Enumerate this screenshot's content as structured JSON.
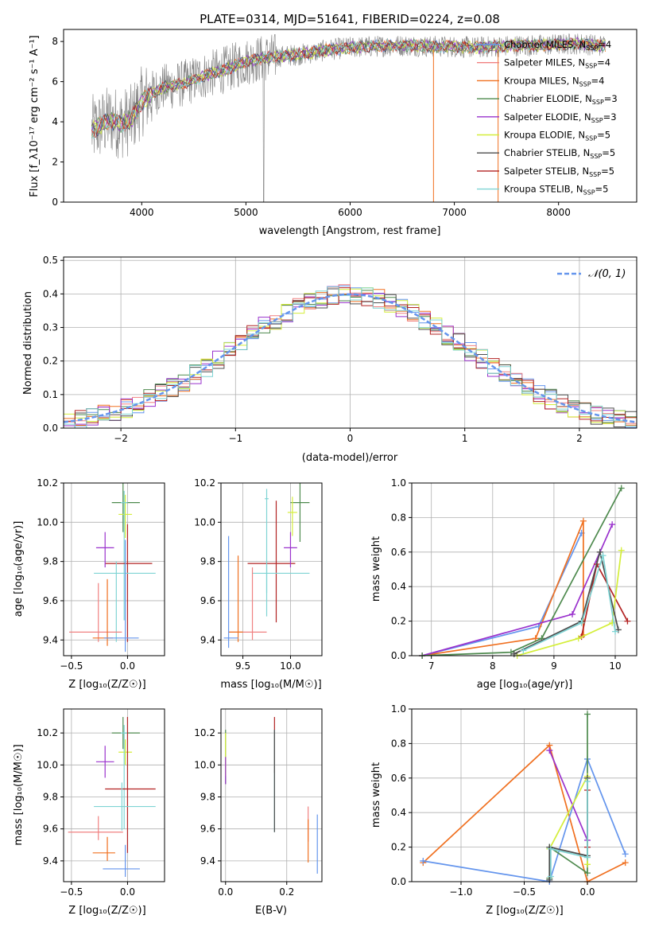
{
  "figure": {
    "title": "PLATE=0314, MJD=51641, FIBERID=0224, z=0.08"
  },
  "colors": {
    "Chabrier MILES": "#6495ed",
    "Salpeter MILES": "#f08080",
    "Kroupa MILES": "#f07020",
    "Chabrier ELODIE": "#4e8a4e",
    "Salpeter ELODIE": "#9a32cd",
    "Kroupa ELODIE": "#d4ee3a",
    "Chabrier STELIB": "#4d4d4d",
    "Salpeter STELIB": "#b22222",
    "Kroupa STELIB": "#7fd4d4",
    "observed": "#808080",
    "normal": "#6495ed"
  },
  "panels": {
    "spectrum": {
      "xlabel": "wavelength [Angstrom, rest frame]",
      "ylabel": "Flux [f_λ10⁻¹⁷ erg cm⁻² s⁻¹ A⁻¹]",
      "xlim": [
        3250,
        8750
      ],
      "ylim": [
        0,
        8.6
      ],
      "xticks": [
        "4000",
        "5000",
        "6000",
        "7000",
        "8000"
      ],
      "yticks": [
        "0",
        "2",
        "4",
        "6",
        "8"
      ]
    },
    "residuals": {
      "xlabel": "(data-model)/error",
      "ylabel": "Normed distribution",
      "xlim": [
        -2.5,
        2.5
      ],
      "ylim": [
        0,
        0.51
      ],
      "xticks": [
        "−2",
        "−1",
        "0",
        "1",
        "2"
      ],
      "yticks": [
        "0.0",
        "0.1",
        "0.2",
        "0.3",
        "0.4",
        "0.5"
      ],
      "legend": "𝒩(0, 1)"
    },
    "z_age": {
      "xlabel": "Z [log₁₀(Z/Z☉)]",
      "ylabel": "age  [log₁₀(age/yr)]",
      "xlim": [
        -0.57,
        0.33
      ],
      "ylim": [
        9.32,
        10.2
      ],
      "xticks": [
        "−0.5",
        "0.0"
      ],
      "yticks": [
        "9.4",
        "9.6",
        "9.8",
        "10.0",
        "10.2"
      ]
    },
    "mass_age": {
      "xlabel": "mass [log₁₀(M/M☉)]",
      "xlim": [
        9.27,
        10.33
      ],
      "ylim": [
        9.32,
        10.2
      ],
      "xticks": [
        "9.5",
        "10.0"
      ],
      "yticks": [
        "9.4",
        "9.6",
        "9.8",
        "10.0",
        "10.2"
      ]
    },
    "age_weight": {
      "xlabel": "age  [log₁₀(age/yr)]",
      "ylabel": "mass weight",
      "xlim": [
        6.68,
        10.35
      ],
      "ylim": [
        0,
        1.0
      ],
      "xticks": [
        "7",
        "8",
        "9",
        "10"
      ],
      "yticks": [
        "0.0",
        "0.2",
        "0.4",
        "0.6",
        "0.8",
        "1.0"
      ]
    },
    "z_mass": {
      "xlabel": "Z [log₁₀(Z/Z☉)]",
      "ylabel": "mass [log₁₀(M/M☉)]",
      "xlim": [
        -0.57,
        0.33
      ],
      "ylim": [
        9.27,
        10.35
      ],
      "xticks": [
        "−0.5",
        "0.0"
      ],
      "yticks": [
        "9.4",
        "9.6",
        "9.8",
        "10.0",
        "10.2"
      ]
    },
    "ebv_mass": {
      "xlabel": "E(B-V)",
      "xlim": [
        -0.015,
        0.315
      ],
      "ylim": [
        9.27,
        10.35
      ],
      "xticks": [
        "0.0",
        "0.2"
      ],
      "yticks": [
        "9.4",
        "9.6",
        "9.8",
        "10.0",
        "10.2"
      ]
    },
    "z_weight": {
      "xlabel": "Z [log₁₀(Z/Z☉)]",
      "ylabel": "mass weight",
      "xlim": [
        -1.39,
        0.39
      ],
      "ylim": [
        0,
        1.0
      ],
      "xticks": [
        "−1.0",
        "−0.5",
        "0.0"
      ],
      "yticks": [
        "0.0",
        "0.2",
        "0.4",
        "0.6",
        "0.8",
        "1.0"
      ]
    }
  },
  "chart_data": [
    {
      "type": "line",
      "panel": "spectrum",
      "title": "PLATE=0314, MJD=51641, FIBERID=0224, z=0.08",
      "xlabel": "wavelength [Angstrom, rest frame]",
      "ylabel": "Flux [fλ10^-17 erg cm^-2 s^-1 A^-1]",
      "xlim": [
        3250,
        8750
      ],
      "ylim": [
        0,
        8.6
      ],
      "legend": [
        {
          "name": "Chabrier MILES",
          "nssp": "4"
        },
        {
          "name": "Salpeter MILES",
          "nssp": "4"
        },
        {
          "name": "Kroupa MILES",
          "nssp": "4"
        },
        {
          "name": "Chabrier ELODIE",
          "nssp": "3"
        },
        {
          "name": "Salpeter ELODIE",
          "nssp": "3"
        },
        {
          "name": "Kroupa ELODIE",
          "nssp": "5"
        },
        {
          "name": "Chabrier STELIB",
          "nssp": "5"
        },
        {
          "name": "Salpeter STELIB",
          "nssp": "5"
        },
        {
          "name": "Kroupa STELIB",
          "nssp": "5"
        }
      ],
      "legend_prefix": "N",
      "legend_sub": "SSP",
      "legend_placement": "right",
      "continuum": {
        "x": [
          3500,
          3600,
          3700,
          3800,
          3900,
          4000,
          4100,
          4200,
          4400,
          4600,
          4800,
          5000,
          5200,
          5400,
          5600,
          5800,
          6000,
          6200,
          6400,
          6600,
          6800,
          7000,
          7200,
          7400,
          7600,
          7800,
          8000,
          8200,
          8400
        ],
        "y": [
          3.5,
          3.8,
          4.1,
          3.9,
          4.1,
          5.0,
          5.4,
          5.7,
          5.9,
          6.3,
          6.6,
          7.0,
          7.2,
          7.3,
          7.4,
          7.6,
          7.7,
          7.75,
          7.8,
          7.8,
          7.75,
          7.75,
          7.7,
          7.75,
          7.8,
          7.8,
          7.85,
          7.9,
          7.8
        ]
      }
    },
    {
      "type": "bar",
      "panel": "residuals",
      "xlabel": "(data-model)/error",
      "ylabel": "Normed distribution",
      "xlim": [
        -2.5,
        2.5
      ],
      "ylim": [
        0,
        0.51
      ],
      "bin_width": 0.1,
      "series": [
        {
          "name": "𝒩(0, 1)",
          "function": "normal",
          "mean": 0,
          "sd": 1
        }
      ]
    },
    {
      "type": "scatter",
      "panel": "z_age",
      "xlabel": "Z [log10(Z/Zsun)]",
      "ylabel": "age [log10(age/yr)]",
      "points": [
        {
          "x": -0.04,
          "y": 10.1,
          "x_err": [
            0.1,
            0.15
          ],
          "y_err": [
            0.15,
            0.1
          ],
          "color": "Chabrier ELODIE"
        },
        {
          "x": -0.02,
          "y": 10.04,
          "x_err": [
            0.06,
            0.06
          ],
          "y_err": [
            0.12,
            0.1
          ],
          "color": "Kroupa ELODIE"
        },
        {
          "x": -0.03,
          "y": 10.1,
          "x_err": [
            0.03,
            0.03
          ],
          "y_err": [
            0.6,
            0.06
          ],
          "color": "Kroupa STELIB"
        },
        {
          "x": 0.0,
          "y": 9.79,
          "x_err": [
            0.2,
            0.22
          ],
          "y_err": [
            0.4,
            0.2
          ],
          "color": "Salpeter STELIB"
        },
        {
          "x": -0.1,
          "y": 9.74,
          "x_err": [
            0.2,
            0.35
          ],
          "y_err": [
            0.35,
            0.06
          ],
          "color": "Kroupa STELIB"
        },
        {
          "x": -0.2,
          "y": 9.87,
          "x_err": [
            0.08,
            0.08
          ],
          "y_err": [
            0.1,
            0.08
          ],
          "color": "Salpeter ELODIE"
        },
        {
          "x": -0.26,
          "y": 9.44,
          "x_err": [
            0.26,
            0.21
          ],
          "y_err": [
            0.05,
            0.25
          ],
          "color": "Salpeter MILES"
        },
        {
          "x": -0.18,
          "y": 9.41,
          "x_err": [
            0.13,
            0.05
          ],
          "y_err": [
            0.04,
            0.3
          ],
          "color": "Kroupa MILES"
        },
        {
          "x": -0.02,
          "y": 9.41,
          "x_err": [
            0.19,
            0.12
          ],
          "y_err": [
            0.07,
            0.5
          ],
          "color": "Chabrier MILES"
        }
      ]
    },
    {
      "type": "scatter",
      "panel": "mass_age",
      "xlabel": "mass [log10(M/Msun)]",
      "points": [
        {
          "x": 10.1,
          "y": 10.1,
          "x_err": [
            0.1,
            0.1
          ],
          "y_err": [
            0.2,
            0.1
          ],
          "color": "Chabrier ELODIE"
        },
        {
          "x": 10.02,
          "y": 10.05,
          "x_err": [
            0.05,
            0.05
          ],
          "y_err": [
            0.12,
            0.08
          ],
          "color": "Kroupa ELODIE"
        },
        {
          "x": 9.75,
          "y": 10.12,
          "x_err": [
            0.02,
            0.02
          ],
          "y_err": [
            0.6,
            0.05
          ],
          "color": "Kroupa STELIB"
        },
        {
          "x": 9.85,
          "y": 9.79,
          "x_err": [
            0.3,
            0.2
          ],
          "y_err": [
            0.3,
            0.32
          ],
          "color": "Salpeter STELIB"
        },
        {
          "x": 9.75,
          "y": 9.74,
          "x_err": [
            0.15,
            0.45
          ],
          "y_err": [
            0.1,
            0.06
          ],
          "color": "Kroupa STELIB"
        },
        {
          "x": 10.0,
          "y": 9.87,
          "x_err": [
            0.07,
            0.07
          ],
          "y_err": [
            0.1,
            0.08
          ],
          "color": "Salpeter ELODIE"
        },
        {
          "x": 9.6,
          "y": 9.44,
          "x_err": [
            0.25,
            0.15
          ],
          "y_err": [
            0.04,
            0.33
          ],
          "color": "Salpeter MILES"
        },
        {
          "x": 9.45,
          "y": 9.44,
          "x_err": [
            0.1,
            0.05
          ],
          "y_err": [
            0.05,
            0.39
          ],
          "color": "Kroupa MILES"
        },
        {
          "x": 9.35,
          "y": 9.41,
          "x_err": [
            0.05,
            0.1
          ],
          "y_err": [
            0.05,
            0.52
          ],
          "color": "Chabrier MILES"
        }
      ]
    },
    {
      "type": "line",
      "panel": "age_weight",
      "xlabel": "age [log10(age/yr)]",
      "ylabel": "mass weight",
      "series": [
        {
          "color": "Chabrier MILES",
          "x": [
            6.85,
            8.75,
            9.45
          ],
          "y": [
            0.0,
            0.17,
            0.71
          ]
        },
        {
          "color": "Kroupa MILES",
          "x": [
            6.85,
            8.7,
            9.48,
            9.48
          ],
          "y": [
            0.0,
            0.1,
            0.78,
            0.12
          ]
        },
        {
          "color": "Salpeter ELODIE",
          "x": [
            6.85,
            9.3,
            9.95
          ],
          "y": [
            0.0,
            0.24,
            0.76
          ]
        },
        {
          "color": "Chabrier ELODIE",
          "x": [
            6.85,
            8.3,
            8.8,
            10.1
          ],
          "y": [
            0.0,
            0.02,
            0.1,
            0.97
          ]
        },
        {
          "color": "Salpeter STELIB",
          "x": [
            9.45,
            9.7,
            10.2
          ],
          "y": [
            0.11,
            0.53,
            0.2
          ]
        },
        {
          "color": "Kroupa ELODIE",
          "x": [
            8.4,
            9.4,
            9.95,
            10.1
          ],
          "y": [
            0.0,
            0.1,
            0.19,
            0.61
          ]
        },
        {
          "color": "Chabrier STELIB",
          "x": [
            8.35,
            9.45,
            9.75,
            10.05
          ],
          "y": [
            0.01,
            0.2,
            0.6,
            0.15
          ]
        },
        {
          "color": "Kroupa STELIB",
          "x": [
            8.5,
            9.45,
            9.8,
            10.0
          ],
          "y": [
            0.03,
            0.19,
            0.58,
            0.14
          ]
        }
      ]
    },
    {
      "type": "scatter",
      "panel": "z_mass",
      "xlabel": "Z [log10(Z/Zsun)]",
      "ylabel": "mass [log10(M/Msun)]",
      "points": [
        {
          "x": -0.04,
          "y": 10.2,
          "x_err": [
            0.1,
            0.15
          ],
          "y_err": [
            0.1,
            0.1
          ],
          "color": "Chabrier ELODIE"
        },
        {
          "x": -0.02,
          "y": 10.08,
          "x_err": [
            0.06,
            0.06
          ],
          "y_err": [
            0.08,
            0.08
          ],
          "color": "Kroupa ELODIE"
        },
        {
          "x": -0.03,
          "y": 10.2,
          "x_err": [
            0.03,
            0.03
          ],
          "y_err": [
            0.6,
            0.05
          ],
          "color": "Kroupa STELIB"
        },
        {
          "x": 0.0,
          "y": 9.85,
          "x_err": [
            0.2,
            0.25
          ],
          "y_err": [
            0.4,
            0.45
          ],
          "color": "Salpeter STELIB"
        },
        {
          "x": -0.05,
          "y": 9.74,
          "x_err": [
            0.25,
            0.3
          ],
          "y_err": [
            0.15,
            0.15
          ],
          "color": "Kroupa STELIB"
        },
        {
          "x": -0.2,
          "y": 10.02,
          "x_err": [
            0.08,
            0.08
          ],
          "y_err": [
            0.1,
            0.1
          ],
          "color": "Salpeter ELODIE"
        },
        {
          "x": -0.26,
          "y": 9.58,
          "x_err": [
            0.27,
            0.22
          ],
          "y_err": [
            0.05,
            0.1
          ],
          "color": "Salpeter MILES"
        },
        {
          "x": -0.18,
          "y": 9.45,
          "x_err": [
            0.13,
            0.07
          ],
          "y_err": [
            0.05,
            0.1
          ],
          "color": "Kroupa MILES"
        },
        {
          "x": -0.02,
          "y": 9.35,
          "x_err": [
            0.2,
            0.13
          ],
          "y_err": [
            0.05,
            0.15
          ],
          "color": "Chabrier MILES"
        }
      ]
    },
    {
      "type": "scatter",
      "panel": "ebv_mass",
      "xlabel": "E(B-V)",
      "points": [
        {
          "x": 0.0,
          "y": 10.0,
          "x_err": [
            0,
            0
          ],
          "y_err": [
            0.12,
            0.22
          ],
          "color": "Chabrier ELODIE"
        },
        {
          "x": 0.0,
          "y": 10.05,
          "x_err": [
            0,
            0
          ],
          "y_err": [
            0.12,
            0.15
          ],
          "color": "Kroupa ELODIE"
        },
        {
          "x": 0.0,
          "y": 9.95,
          "x_err": [
            0,
            0
          ],
          "y_err": [
            0.07,
            0.1
          ],
          "color": "Salpeter ELODIE"
        },
        {
          "x": 0.16,
          "y": 10.2,
          "x_err": [
            0,
            0
          ],
          "y_err": [
            0.25,
            0.1
          ],
          "color": "Salpeter STELIB"
        },
        {
          "x": 0.16,
          "y": 9.9,
          "x_err": [
            0,
            0
          ],
          "y_err": [
            0.32,
            0.32
          ],
          "color": "Kroupa STELIB"
        },
        {
          "x": 0.16,
          "y": 9.9,
          "x_err": [
            0,
            0
          ],
          "y_err": [
            0.32,
            0.32
          ],
          "color": "Chabrier STELIB"
        },
        {
          "x": 0.27,
          "y": 9.6,
          "x_err": [
            0,
            0
          ],
          "y_err": [
            0.08,
            0.14
          ],
          "color": "Salpeter MILES"
        },
        {
          "x": 0.27,
          "y": 9.5,
          "x_err": [
            0,
            0
          ],
          "y_err": [
            0.11,
            0.16
          ],
          "color": "Kroupa MILES"
        },
        {
          "x": 0.3,
          "y": 9.5,
          "x_err": [
            0,
            0
          ],
          "y_err": [
            0.18,
            0.19
          ],
          "color": "Chabrier MILES"
        }
      ]
    },
    {
      "type": "line",
      "panel": "z_weight",
      "xlabel": "Z [log10(Z/Zsun)]",
      "ylabel": "mass weight",
      "series": [
        {
          "color": "Kroupa MILES",
          "x": [
            -1.3,
            -0.3,
            0.0,
            0.3
          ],
          "y": [
            0.11,
            0.79,
            0.0,
            0.11
          ]
        },
        {
          "color": "Chabrier MILES",
          "x": [
            -1.3,
            -0.3,
            0.0,
            0.3
          ],
          "y": [
            0.12,
            0.0,
            0.71,
            0.16
          ]
        },
        {
          "color": "Salpeter ELODIE",
          "x": [
            -0.3,
            0.0
          ],
          "y": [
            0.76,
            0.24
          ]
        },
        {
          "color": "Chabrier ELODIE",
          "x": [
            -0.3,
            -0.3,
            0.0,
            0.0
          ],
          "y": [
            0.02,
            0.2,
            0.05,
            0.97
          ]
        },
        {
          "color": "Kroupa ELODIE",
          "x": [
            -0.3,
            0.0,
            0.0
          ],
          "y": [
            0.19,
            0.61,
            0.1
          ]
        },
        {
          "color": "Salpeter STELIB",
          "x": [
            0.0,
            0.0
          ],
          "y": [
            0.53,
            0.2
          ]
        },
        {
          "color": "Chabrier STELIB",
          "x": [
            -0.3,
            -0.3,
            0.0,
            0.0
          ],
          "y": [
            0.01,
            0.2,
            0.15,
            0.6
          ]
        },
        {
          "color": "Kroupa STELIB",
          "x": [
            -0.29,
            -0.29,
            0.0,
            0.0
          ],
          "y": [
            0.03,
            0.19,
            0.14,
            0.58
          ]
        }
      ]
    }
  ]
}
